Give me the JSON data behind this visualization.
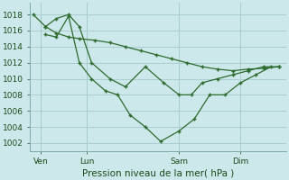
{
  "background_color": "#cce8ea",
  "grid_color": "#aacfcf",
  "line_color": "#2d6a2d",
  "marker_color": "#2d6a2d",
  "title": "Pression niveau de la mer( hPa )",
  "ylim": [
    1001,
    1019.5
  ],
  "yticks": [
    1002,
    1004,
    1006,
    1008,
    1010,
    1012,
    1014,
    1016,
    1018
  ],
  "xlim": [
    -0.2,
    16.5
  ],
  "xtick_positions": [
    0.5,
    3.5,
    9.5,
    13.5
  ],
  "xtick_labels": [
    "Ven",
    "Lun",
    "Sam",
    "Dim"
  ],
  "vline_positions": [
    0.5,
    3.5,
    9.5,
    13.5
  ],
  "line1_x": [
    0.0,
    0.8,
    1.5,
    2.3,
    3.0,
    4.0,
    5.0,
    6.0,
    7.0,
    8.0,
    9.0,
    10.0,
    11.0,
    12.0,
    13.0,
    14.0,
    15.0,
    16.0
  ],
  "line1_y": [
    1018.0,
    1016.5,
    1015.7,
    1015.2,
    1015.0,
    1014.8,
    1014.5,
    1014.0,
    1013.5,
    1013.0,
    1012.5,
    1012.0,
    1011.5,
    1011.2,
    1011.0,
    1011.2,
    1011.3,
    1011.5
  ],
  "line2_x": [
    0.8,
    1.5,
    2.3,
    3.0,
    3.8,
    5.0,
    6.0,
    7.3,
    8.5,
    9.5,
    10.3,
    11.0,
    12.0,
    13.0,
    14.0,
    15.0,
    16.0
  ],
  "line2_y": [
    1016.5,
    1017.5,
    1018.0,
    1016.5,
    1012.0,
    1010.0,
    1009.0,
    1011.5,
    1009.5,
    1008.0,
    1008.0,
    1009.5,
    1010.0,
    1010.5,
    1011.0,
    1011.5,
    1011.5
  ],
  "line3_x": [
    0.8,
    1.5,
    2.3,
    3.0,
    3.8,
    4.7,
    5.5,
    6.3,
    7.3,
    8.3,
    9.5,
    10.5,
    11.5,
    12.5,
    13.5,
    14.5,
    15.5
  ],
  "line3_y": [
    1015.5,
    1015.2,
    1017.8,
    1012.0,
    1010.0,
    1008.5,
    1008.0,
    1005.5,
    1004.0,
    1002.2,
    1003.5,
    1005.0,
    1008.0,
    1008.0,
    1009.5,
    1010.5,
    1011.5
  ]
}
